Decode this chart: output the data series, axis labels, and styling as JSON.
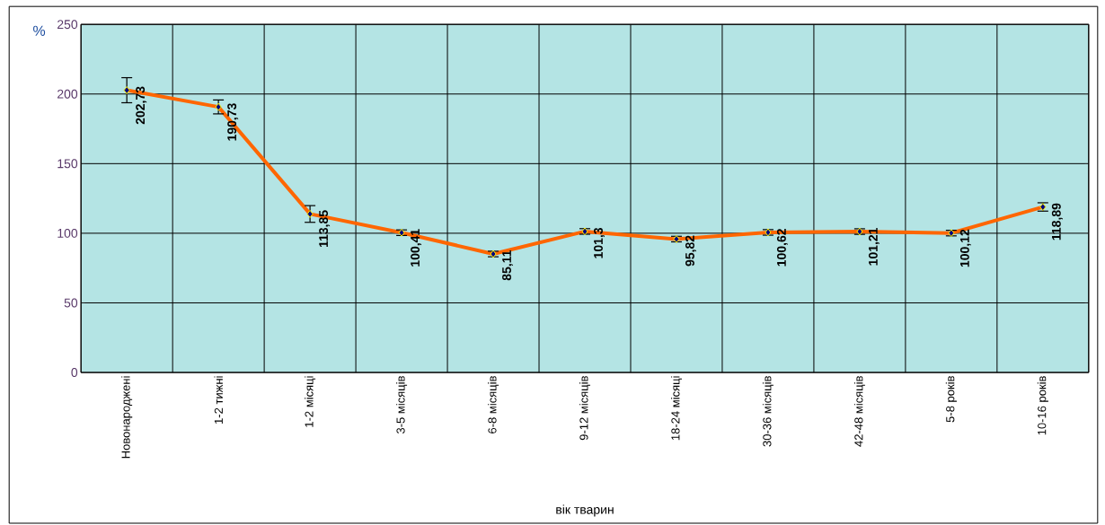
{
  "chart_data": {
    "type": "line",
    "categories": [
      "Новонароджені",
      "1-2 тижні",
      "1-2 місяці",
      "3-5 місяців",
      "6-8 місяців",
      "9-12 місяців",
      "18-24 місяці",
      "30-36 місяців",
      "42-48 місяців",
      "5-8 років",
      "10-16 років"
    ],
    "values": [
      202.73,
      190.73,
      113.85,
      100.41,
      85.11,
      101.3,
      95.82,
      100.62,
      101.21,
      100.12,
      118.89
    ],
    "errors": [
      9,
      5,
      6,
      2,
      2,
      2,
      2,
      2,
      2,
      2,
      3
    ],
    "value_labels": [
      "202,73",
      "190,73",
      "113,85",
      "100,41",
      "85,11",
      "101,3",
      "95,82",
      "100,62",
      "101,21",
      "100,12",
      "118,89"
    ],
    "color": "#ff6600",
    "marker": "diamond",
    "ylim": [
      0,
      250
    ],
    "yticks": [
      0,
      50,
      100,
      150,
      200,
      250
    ],
    "ylabel": "%",
    "xlabel": "вік тварин",
    "grid": true
  }
}
